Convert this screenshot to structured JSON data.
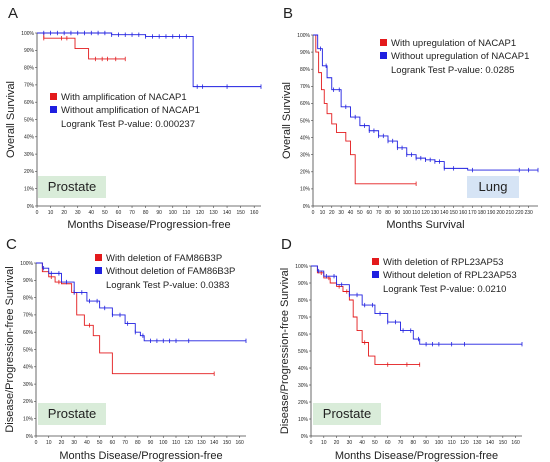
{
  "chart_data": [
    {
      "type": "line",
      "panel_letter": "A",
      "xlabel": "Months Disease/Progression-free",
      "ylabel": "Overall Survival",
      "xlim": [
        0,
        165
      ],
      "ylim": [
        0,
        100
      ],
      "x_ticks": [
        0,
        10,
        20,
        30,
        40,
        50,
        60,
        70,
        80,
        90,
        100,
        110,
        120,
        130,
        140,
        150,
        160
      ],
      "y_ticks": [
        0,
        10,
        20,
        30,
        40,
        50,
        60,
        70,
        80,
        90,
        100
      ],
      "y_tick_suffix": "%",
      "legend": [
        "With amplification of NACAP1",
        "Without amplification of NACAP1"
      ],
      "pvalue_text": "Logrank Test P-value: 0.000237",
      "label_box": {
        "text": "Prostate",
        "color": "#d9ecd9"
      },
      "series": [
        {
          "name": "With amplification of NACAP1",
          "color": "#e31a1c",
          "x": [
            0,
            5,
            18,
            28,
            38,
            48,
            58,
            65
          ],
          "y": [
            100,
            97,
            97,
            91,
            85,
            85,
            85,
            85
          ],
          "censor_x": [
            5,
            18,
            22,
            43,
            48,
            52,
            58,
            65
          ]
        },
        {
          "name": "Without amplification of NACAP1",
          "color": "#1f1fe0",
          "x": [
            0,
            30,
            55,
            80,
            100,
            112,
            115,
            140,
            165
          ],
          "y": [
            100,
            100,
            99,
            98,
            98,
            98,
            69,
            69,
            69
          ],
          "censor_x": [
            5,
            10,
            15,
            20,
            25,
            30,
            35,
            40,
            45,
            50,
            55,
            60,
            65,
            70,
            75,
            80,
            85,
            90,
            95,
            100,
            105,
            110,
            118,
            122,
            140,
            165
          ]
        }
      ]
    },
    {
      "type": "line",
      "panel_letter": "B",
      "xlabel": "Months Survival",
      "ylabel": "Overall Survival",
      "xlim": [
        0,
        240
      ],
      "ylim": [
        0,
        100
      ],
      "x_ticks": [
        0,
        10,
        20,
        30,
        40,
        50,
        60,
        70,
        80,
        90,
        100,
        110,
        120,
        130,
        140,
        150,
        160,
        170,
        180,
        190,
        200,
        210,
        220,
        230
      ],
      "y_ticks": [
        0,
        10,
        20,
        30,
        40,
        50,
        60,
        70,
        80,
        90,
        100
      ],
      "y_tick_suffix": "%",
      "legend": [
        "With upregulation of NACAP1",
        "Without upregulation of NACAP1"
      ],
      "pvalue_text": "Logrank Test P-value: 0.0285",
      "label_box": {
        "text": "Lung",
        "color": "#d6e4f5"
      },
      "series": [
        {
          "name": "With upregulation of NACAP1",
          "color": "#e31a1c",
          "x": [
            0,
            3,
            6,
            9,
            12,
            15,
            20,
            25,
            30,
            35,
            40,
            45,
            110
          ],
          "y": [
            100,
            90,
            78,
            68,
            60,
            54,
            48,
            43,
            43,
            38,
            30,
            13,
            13
          ],
          "censor_x": [
            110
          ]
        },
        {
          "name": "Without upregulation of NACAP1",
          "color": "#1f1fe0",
          "x": [
            0,
            5,
            10,
            15,
            20,
            30,
            40,
            50,
            60,
            70,
            80,
            90,
            100,
            110,
            120,
            130,
            140,
            160,
            165,
            240
          ],
          "y": [
            100,
            92,
            82,
            75,
            68,
            58,
            52,
            47,
            44,
            41,
            38,
            34,
            30,
            28,
            27,
            26,
            22,
            22,
            21,
            21
          ],
          "censor_x": [
            8,
            14,
            22,
            28,
            35,
            45,
            55,
            60,
            65,
            70,
            75,
            80,
            85,
            90,
            95,
            100,
            105,
            110,
            115,
            120,
            125,
            130,
            135,
            140,
            150,
            170,
            220,
            230,
            240
          ]
        }
      ]
    },
    {
      "type": "line",
      "panel_letter": "C",
      "xlabel": "Months Disease/Progression-free",
      "ylabel": "Disease/Progression-free Survival",
      "xlim": [
        0,
        165
      ],
      "ylim": [
        0,
        100
      ],
      "x_ticks": [
        0,
        10,
        20,
        30,
        40,
        50,
        60,
        70,
        80,
        90,
        100,
        110,
        120,
        130,
        140,
        150,
        160
      ],
      "y_ticks": [
        0,
        10,
        20,
        30,
        40,
        50,
        60,
        70,
        80,
        90,
        100
      ],
      "y_tick_suffix": "%",
      "legend": [
        "With deletion of FAM86B3P",
        "Without deletion of FAM86B3P"
      ],
      "pvalue_text": "Logrank Test P-value: 0.0383",
      "label_box": {
        "text": "Prostate",
        "color": "#d9ecd9"
      },
      "series": [
        {
          "name": "With deletion of FAM86B3P",
          "color": "#e31a1c",
          "x": [
            0,
            5,
            10,
            15,
            20,
            28,
            32,
            35,
            38,
            45,
            50,
            55,
            60,
            140
          ],
          "y": [
            100,
            95,
            92,
            89,
            88,
            83,
            70,
            70,
            64,
            58,
            48,
            48,
            36,
            36
          ],
          "censor_x": [
            12,
            18,
            30,
            42,
            140
          ]
        },
        {
          "name": "Without deletion of FAM86B3P",
          "color": "#1f1fe0",
          "x": [
            0,
            5,
            10,
            20,
            30,
            40,
            50,
            60,
            70,
            78,
            82,
            85,
            165
          ],
          "y": [
            100,
            97,
            94,
            89,
            83,
            78,
            74,
            70,
            65,
            60,
            58,
            55,
            55
          ],
          "censor_x": [
            6,
            12,
            18,
            24,
            30,
            36,
            42,
            48,
            54,
            60,
            66,
            72,
            78,
            84,
            90,
            95,
            100,
            105,
            110,
            120,
            165
          ]
        }
      ]
    },
    {
      "type": "line",
      "panel_letter": "D",
      "xlabel": "Months Disease/Progression-free",
      "ylabel": "Disease/Progression-free Survival",
      "xlim": [
        0,
        165
      ],
      "ylim": [
        0,
        100
      ],
      "x_ticks": [
        0,
        10,
        20,
        30,
        40,
        50,
        60,
        70,
        80,
        90,
        100,
        110,
        120,
        130,
        140,
        150,
        160
      ],
      "y_ticks": [
        0,
        10,
        20,
        30,
        40,
        50,
        60,
        70,
        80,
        90,
        100
      ],
      "y_tick_suffix": "%",
      "legend": [
        "With deletion of RPL23AP53",
        "Without deletion of RPL23AP53"
      ],
      "pvalue_text": "Logrank Test P-value: 0.0210",
      "label_box": {
        "text": "Prostate",
        "color": "#d9ecd9"
      },
      "series": [
        {
          "name": "With deletion of RPL23AP53",
          "color": "#e31a1c",
          "x": [
            0,
            5,
            10,
            15,
            20,
            25,
            30,
            33,
            36,
            40,
            45,
            50,
            85
          ],
          "y": [
            100,
            96,
            93,
            90,
            88,
            85,
            80,
            70,
            62,
            55,
            47,
            42,
            42
          ],
          "censor_x": [
            8,
            14,
            22,
            28,
            42,
            60,
            75,
            85
          ]
        },
        {
          "name": "Without deletion of RPL23AP53",
          "color": "#1f1fe0",
          "x": [
            0,
            5,
            10,
            20,
            30,
            40,
            50,
            60,
            70,
            80,
            85,
            165
          ],
          "y": [
            100,
            97,
            94,
            89,
            83,
            77,
            72,
            67,
            62,
            57,
            54,
            54
          ],
          "censor_x": [
            6,
            12,
            18,
            24,
            30,
            36,
            42,
            48,
            54,
            60,
            66,
            72,
            78,
            84,
            90,
            95,
            100,
            110,
            120,
            165
          ]
        }
      ]
    }
  ]
}
